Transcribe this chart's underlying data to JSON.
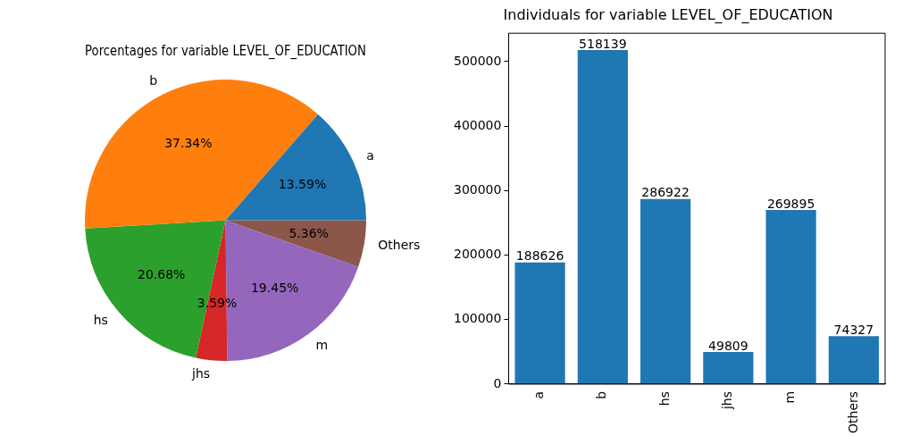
{
  "chart_data": [
    {
      "type": "pie",
      "title": "Porcentages for variable LEVEL_OF_EDUCATION",
      "categories": [
        "a",
        "b",
        "hs",
        "jhs",
        "m",
        "Others"
      ],
      "values": [
        13.59,
        37.34,
        20.68,
        3.59,
        19.45,
        5.36
      ],
      "colors": [
        "#1f77b4",
        "#ff7f0e",
        "#2ca02c",
        "#d62728",
        "#9467bd",
        "#8c564b"
      ],
      "value_labels": [
        "13.59%",
        "37.34%",
        "20.68%",
        "3.59%",
        "19.45%",
        "5.36%"
      ]
    },
    {
      "type": "bar",
      "title": "Individuals for variable LEVEL_OF_EDUCATION",
      "categories": [
        "a",
        "b",
        "hs",
        "jhs",
        "m",
        "Others"
      ],
      "values": [
        188626,
        518139,
        286922,
        49809,
        269895,
        74327
      ],
      "color": "#1f77b4",
      "ylim": [
        0,
        544046
      ],
      "yticks": [
        0,
        100000,
        200000,
        300000,
        400000,
        500000
      ],
      "data_labels": true
    }
  ]
}
